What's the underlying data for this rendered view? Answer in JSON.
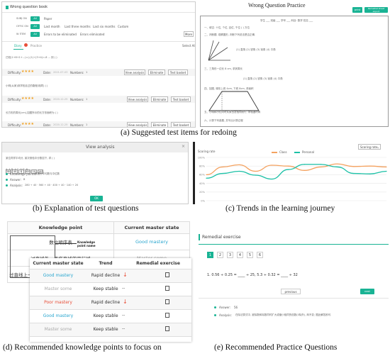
{
  "panel_a": {
    "title": "Wrong question book",
    "filters": [
      {
        "label": "SUBJ ON",
        "chip": "All",
        "opts": [
          "Paper"
        ]
      },
      {
        "label": "ОFFIC ON",
        "chip": "All",
        "opts": [
          "Last month",
          "Last three months",
          "Last six months",
          "Custom"
        ]
      },
      {
        "label": "W ITEM",
        "chip": "All",
        "opts": [
          "Errors to be eliminated",
          "Errors eliminated"
        ]
      }
    ],
    "more": "More",
    "tab1": "Diary",
    "tab2": "Practice",
    "select_all": "Select All",
    "questions": [
      {
        "text": "已知(1+8+1+...)=(-(1)÷(3+4)=-8 ... 则 ( )",
        "diff_label": "Difficulty:",
        "stars": "★★★★",
        "date_label": "Date:",
        "date": "2021-07-03",
        "num_label": "Numbers:",
        "num": "1"
      },
      {
        "text": "小明(从家)到学校走过的路程(相同) ( )",
        "diff_label": "Difficulty:",
        "stars": "★★★★",
        "date_label": "Date:",
        "date": "2020-12-25",
        "num_label": "Numbers:",
        "num": "1"
      },
      {
        "text": "长方形的周长(cm),如图所示的长方形面积为 ( )",
        "diff_label": "Difficulty:",
        "stars": "★★★★",
        "date_label": "Date:",
        "date": "2020-12-25",
        "num_label": "Numbers:",
        "num": "1"
      }
    ],
    "btn_view": "View analysis",
    "btn_elim": "Eliminate",
    "btn_test": "Test basket",
    "caption": "(a) Suggested test items for redoing"
  },
  "practice": {
    "title": "Wrong Question Practice",
    "btn1": "print",
    "btn2": "Remedial sheet export",
    "header_line": "学生 ___ 班级 ___ 学号 ___ 科目: 数学 姓名 ___",
    "q1": "一、填空. 十位, 个位, 百位, 千位 ( ) 万位",
    "q2": "二、判断题. 观察图形, 判断下列说法是否正确.",
    "q3": "三、三角形一边长 8 cm, 求其周长",
    "opts": "(1) 直角   (2) 锐角   (3) 钝角   (4) 平角",
    "q4": "四、如图, 梯形上底 4cm, 下底 8cm, 求面积",
    "q5": "五、小明和小红同时从家出发相向而行, 求相遇时间",
    "q6": "六、计算下列各题, 并写出计算过程"
  },
  "panel_b": {
    "header": "View analysis",
    "q_text": "某位同学平均分, 某次测验中分数如下, 求 ( )",
    "bubbles": [
      "280",
      "40",
      "8",
      "400",
      "10",
      "140"
    ],
    "choices": "A. 1     B. 4     C. 5     D. 8",
    "kp_label": "Knowledge points:",
    "kp_value": "数据的平均数与中位数",
    "ans_label": "Answer:",
    "ans_value": "B",
    "analysis_label": "Analysis:",
    "analysis_value": "280 ÷ 40 · 560 ÷ 40 · 400 ÷ 40 · 140 ÷ 20",
    "ok": "OK",
    "caption": "(b) Explanation of test questions"
  },
  "panel_c": {
    "title": "Scoring rate",
    "dropdown": "Scoring rate",
    "legend_class": "Class",
    "legend_personal": "Personal",
    "caption": "(c) Trends in the learning journey"
  },
  "chart_data": {
    "type": "line",
    "ylabel": "Scoring rate",
    "yticks": [
      "0%",
      "20%",
      "40%",
      "60%",
      "80%",
      "100%"
    ],
    "ylim": [
      0,
      100
    ],
    "series": [
      {
        "name": "Class",
        "color": "#f4a260",
        "values": [
          60,
          78,
          83,
          68,
          82,
          80,
          70,
          78,
          85,
          79,
          80,
          78
        ]
      },
      {
        "name": "Personal",
        "color": "#1cc0a6",
        "values": [
          52,
          63,
          68,
          59,
          50,
          72,
          84,
          84,
          78,
          63,
          62,
          68
        ]
      }
    ]
  },
  "panel_d": {
    "col_kp": "Knowledge point",
    "col_master": "Current master state",
    "kp_rows": [
      {
        "kp": "数位顺序表",
        "state": "Good mastery"
      },
      {
        "kp": "过直线外一点作直线的平行线",
        "state": "Master some"
      },
      {
        "kp": "过直线上一点作",
        "state": ""
      }
    ],
    "callout": "Knowledge point name",
    "col_state": "Current master state",
    "col_trend": "Trend",
    "col_remedial": "Remedial exercise",
    "rows": [
      {
        "state": "Good mastery",
        "trend": "Rapid decline",
        "arrow": "↓"
      },
      {
        "state": "Master some",
        "trend": "Keep stable",
        "arrow": "--"
      },
      {
        "state": "Poor mastery",
        "trend": "Rapid decline",
        "arrow": "↓"
      },
      {
        "state": "Good mastery",
        "trend": "Keep stable",
        "arrow": "--"
      },
      {
        "state": "Master some",
        "trend": "Keep stable",
        "arrow": "--"
      }
    ],
    "caption": "(d) Recommended knowledge points to focus on"
  },
  "panel_e": {
    "title": "Remedial exercise",
    "pages": [
      "1",
      "2",
      "3",
      "4",
      "5",
      "6"
    ],
    "question": "1. 0.56 ÷ 0.25 = ____ ÷ 25,  5.3 ÷ 0.32 = ____ ÷ 32",
    "previous": "previous",
    "next": "next",
    "ans_label": "Answer:",
    "ans_value": "56",
    "analysis_label": "Analysis:",
    "analysis_value": "在除法算式中, 被除数和除数同时扩大或缩小相同的倍数(0除外), 商不变; 据此解答即可.",
    "caption": "(e) Recommended Practice Questions"
  },
  "colors": {
    "accent": "#19b394",
    "orange": "#f4a260",
    "teal": "#1cc0a6",
    "good": "#2aa6cf",
    "poor": "#e8503a",
    "some": "#aaaaaa"
  }
}
